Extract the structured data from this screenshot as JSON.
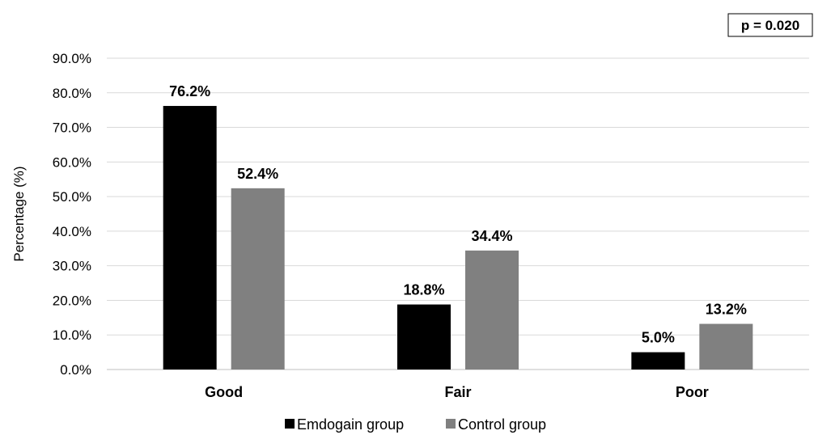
{
  "chart_data": {
    "type": "bar",
    "ylabel": "Percentage (%)",
    "ylim": [
      0,
      90
    ],
    "ytick_step": 10,
    "ytick_format": "0.0%",
    "grid": true,
    "legend_position": "bottom",
    "categories": [
      "Good",
      "Fair",
      "Poor"
    ],
    "series": [
      {
        "name": "Emdogain group",
        "color": "#000000",
        "values": [
          76.2,
          18.8,
          5.0
        ]
      },
      {
        "name": "Control group",
        "color": "#808080",
        "values": [
          52.4,
          34.4,
          13.2
        ]
      }
    ],
    "annotation": "p = 0.020"
  }
}
